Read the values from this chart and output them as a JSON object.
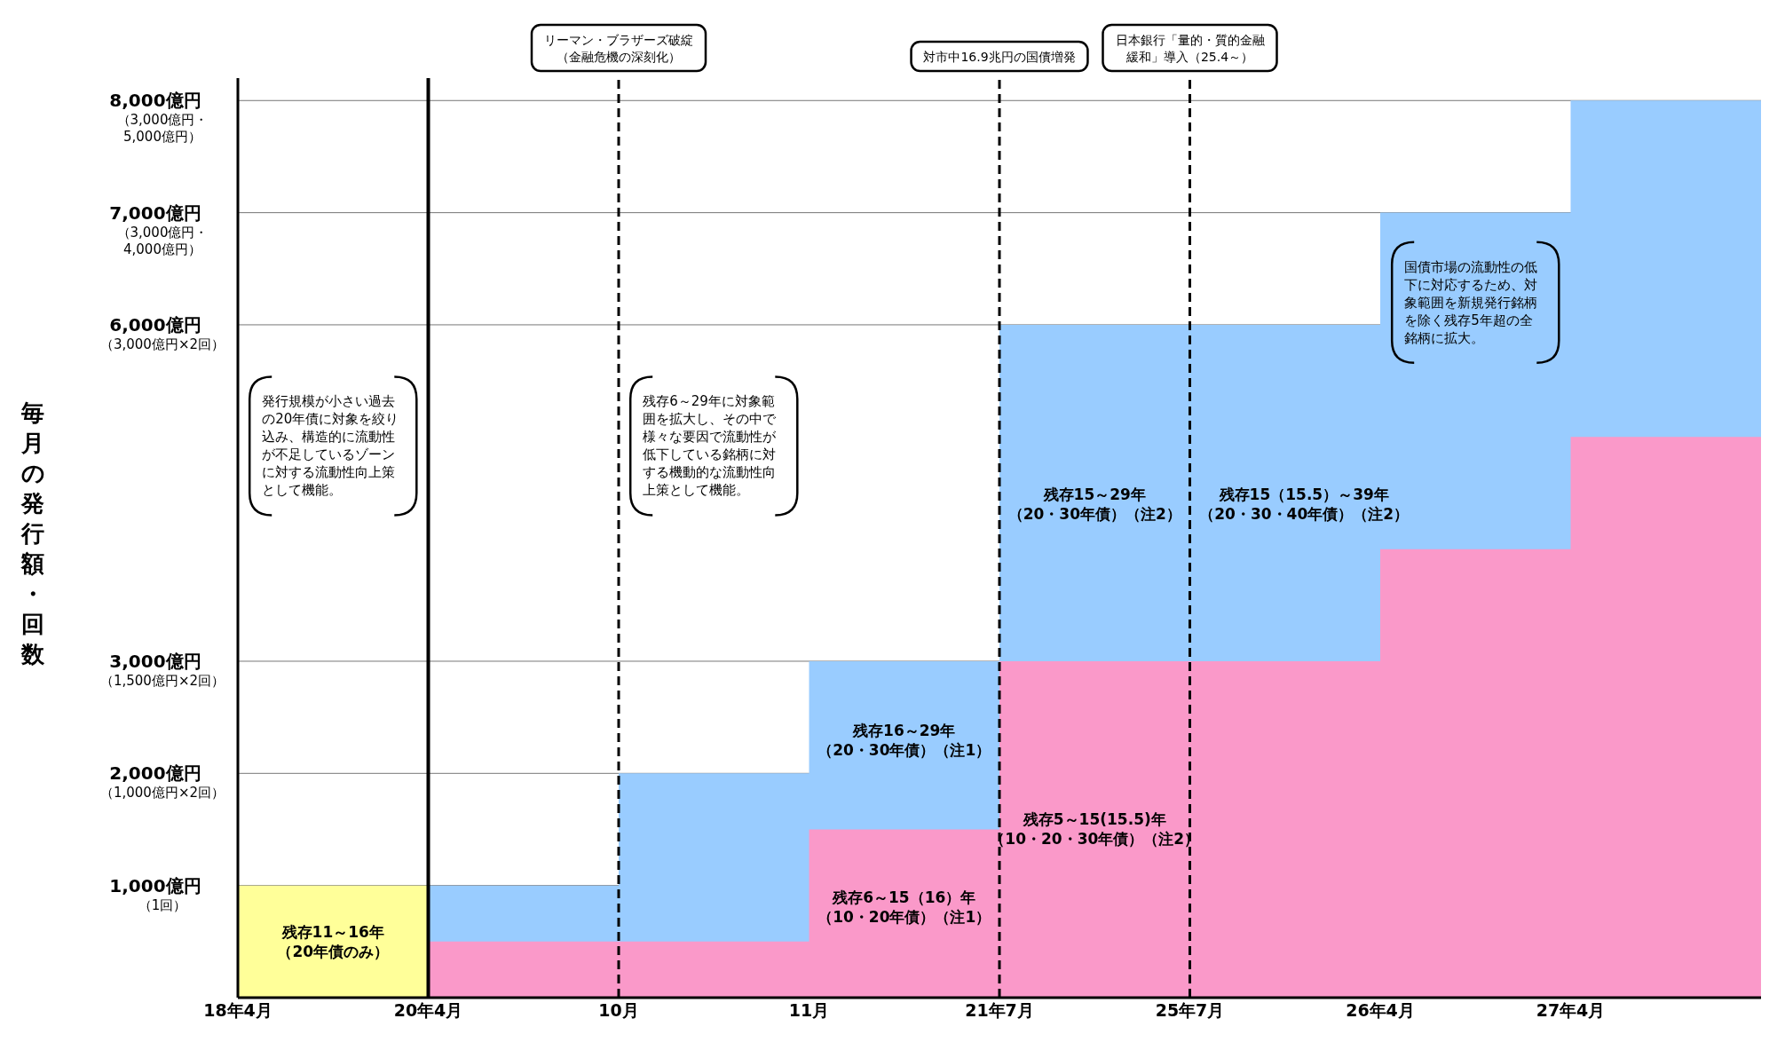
{
  "chart_data": {
    "type": "area",
    "ylabel": "毎月の発行額・回数",
    "categories": [
      "18年4月",
      "20年4月",
      "10月",
      "11月",
      "21年7月",
      "25年7月",
      "26年4月",
      "27年4月",
      null
    ],
    "series": [
      {
        "color": "#ffff99",
        "values": [
          1000,
          0,
          null,
          null,
          null,
          null,
          null,
          null,
          null
        ]
      },
      {
        "color": "#fa99c9",
        "values": [
          null,
          500,
          500,
          1500,
          3000,
          3000,
          4000,
          5000,
          5000
        ]
      },
      {
        "color": "#99ccff",
        "values": [
          null,
          1000,
          2000,
          3000,
          6000,
          6000,
          7000,
          8000,
          8000
        ]
      }
    ],
    "ylim": [
      0,
      8200
    ],
    "yticks": [
      {
        "value": 1000,
        "label": "1,000億円"
      },
      {
        "value": 2000,
        "label": "2,000億円"
      },
      {
        "value": 3000,
        "label": "3,000億円"
      },
      {
        "value": 6000,
        "label": "6,000億円"
      },
      {
        "value": 7000,
        "label": "7,000億円"
      },
      {
        "value": 8000,
        "label": "8,000億円"
      }
    ],
    "grid": "y",
    "ref_lines": [
      {
        "axis": "x",
        "value": "20年4月",
        "label": null,
        "color": "#000000",
        "line_style": "solid"
      },
      {
        "axis": "x",
        "value": "10月",
        "label": "リーマン・ブラザーズ破綻（金融危機の深刻化）",
        "color": "#000000",
        "line_style": "dashed"
      },
      {
        "axis": "x",
        "value": "21年7月",
        "label": "対市中16.9兆円の国債増発",
        "color": "#000000",
        "line_style": "dashed"
      },
      {
        "axis": "x",
        "value": "25年7月",
        "label": "日本銀行「量的・質的金融緩和」導入（25.4～）",
        "color": "#000000",
        "line_style": "dashed"
      }
    ],
    "annotations": [
      "（1回）",
      "（1,000億円×2回）",
      "（1,500億円×2回）",
      "（3,000億円×2回）",
      "（3,000億円・4,000億円）",
      "（3,000億円・5,000億円）",
      "残存11～16年（20年債のみ）",
      "残存6～15（16）年（10・20年債）（注1）",
      "残存16～29年（20・30年債）（注1）",
      "残存5～15(15.5)年（10・20・30年債）（注2）",
      "残存15～29年（20・30年債）（注2）",
      "残存15（15.5）～39年（20・30・40年債）（注2）",
      "発行規模が小さい過去の20年債に対象を絞り込み、構造的に流動性が不足しているゾーンに対する流動性向上策として機能。",
      "残存6～29年に対象範囲を拡大し、その中で様々な要因で流動性が低下している銘柄に対する機動的な流動性向上策として機能。",
      "国債市場の流動性の低下に対応するため、対象範囲を新規発行銘柄を除く残存5年超の全銘柄に拡大。"
    ]
  }
}
